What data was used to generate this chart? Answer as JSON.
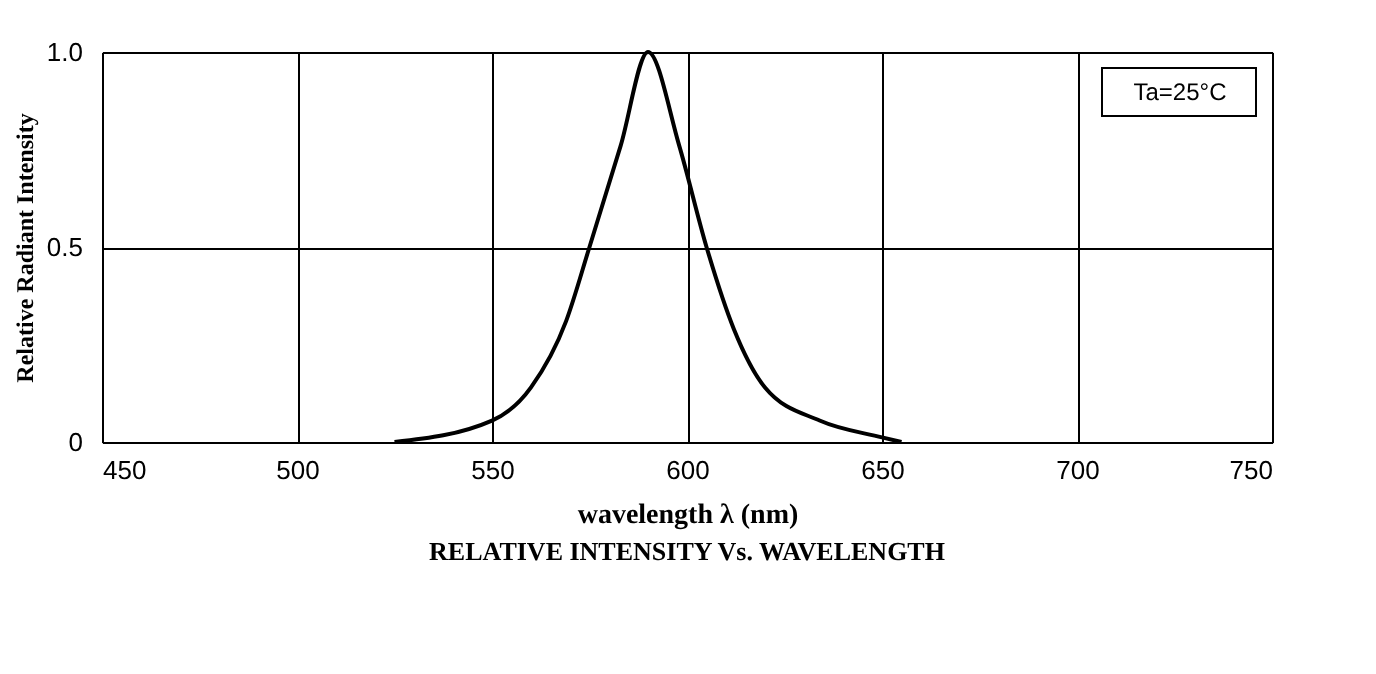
{
  "chart_data": {
    "type": "line",
    "xlabel": "wavelength λ (nm)",
    "ylabel": "Relative Radiant Intensity",
    "annotations": [
      "Ta=25°C",
      "RELATIVE INTENSITY Vs. WAVELENGTH"
    ],
    "x": [
      525,
      550,
      560,
      569,
      575,
      583,
      590,
      598,
      605,
      612,
      620,
      634,
      650,
      655
    ],
    "series": [
      {
        "color": "#000000",
        "values": [
          0,
          0.055,
          0.14,
          0.31,
          0.5,
          0.76,
          1.0,
          0.76,
          0.5,
          0.29,
          0.14,
          0.055,
          0.012,
          0
        ]
      }
    ],
    "xlim": [
      450,
      750
    ],
    "xticks": [
      450,
      500,
      550,
      600,
      650,
      700,
      750
    ],
    "ylim": [
      0,
      1
    ],
    "yticks": [
      0,
      0.5,
      {
        "value": 1,
        "label": "1.0"
      }
    ],
    "grid": true,
    "marker": "none",
    "line_style": "solid"
  }
}
